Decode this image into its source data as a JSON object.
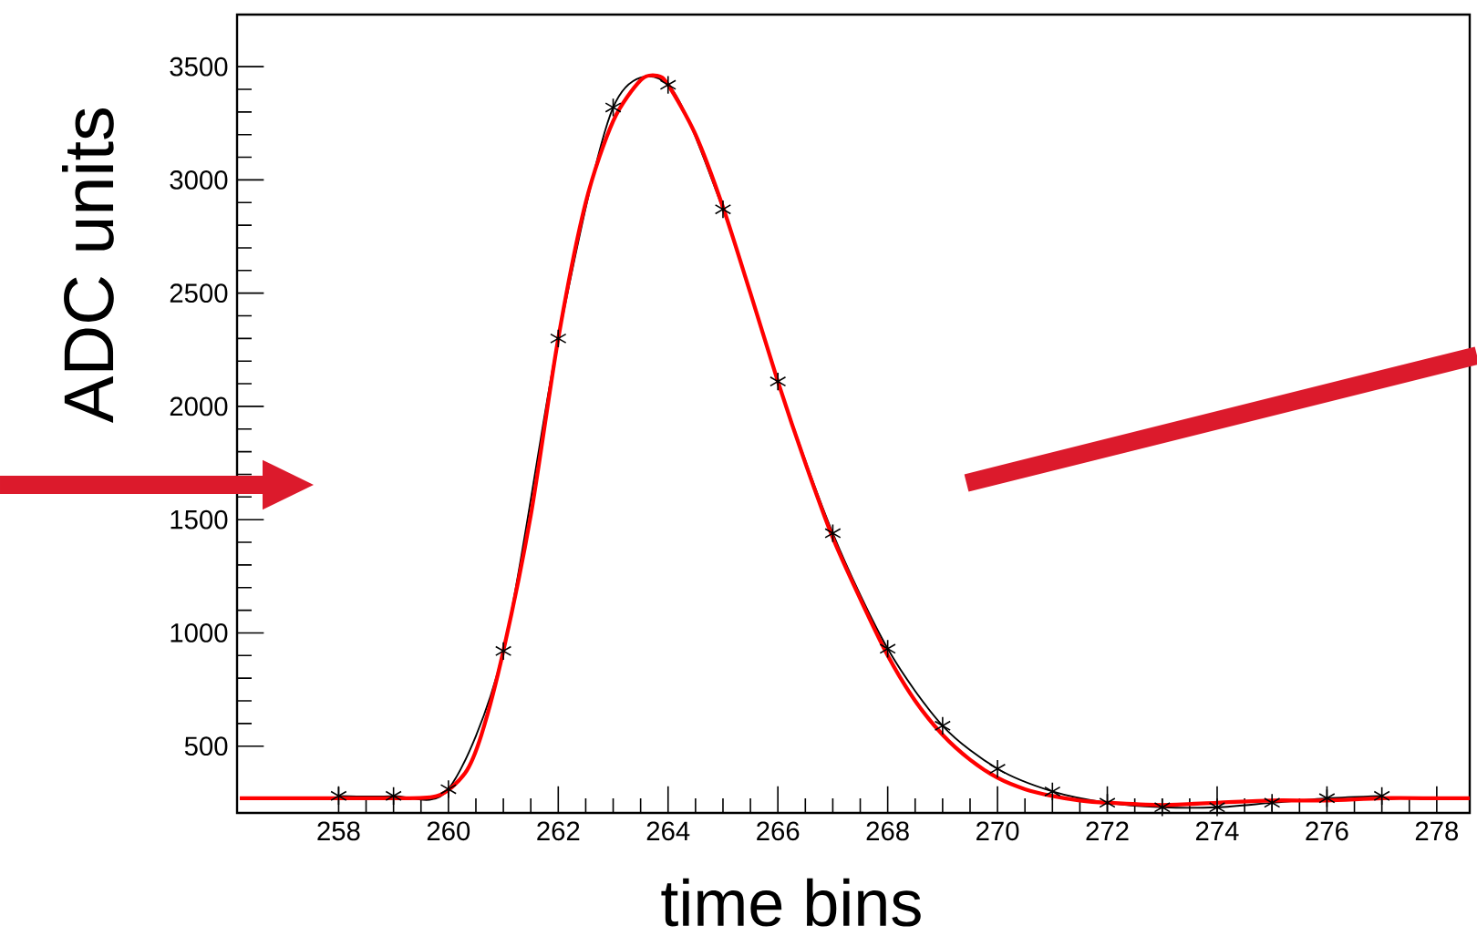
{
  "chart_data": {
    "type": "line",
    "xlabel": "time bins",
    "ylabel": "ADC units",
    "xlim": [
      256.15,
      278.6
    ],
    "ylim": [
      205,
      3730
    ],
    "xticks": [
      258,
      260,
      262,
      264,
      266,
      268,
      270,
      272,
      274,
      276,
      278
    ],
    "yticks": [
      500,
      1000,
      1500,
      2000,
      2500,
      3000,
      3500
    ],
    "grid": false,
    "series": [
      {
        "color": "#000000",
        "marker": "cross",
        "x": [
          258,
          259,
          260,
          261,
          262,
          263,
          264,
          265,
          266,
          267,
          268,
          269,
          270,
          271,
          272,
          273,
          274,
          275,
          276,
          277
        ],
        "values": [
          280,
          280,
          310,
          920,
          2300,
          3320,
          3420,
          2870,
          2110,
          1440,
          930,
          590,
          400,
          300,
          250,
          230,
          230,
          250,
          270,
          280
        ]
      },
      {
        "color": "#ff0000",
        "marker": "none",
        "x": [
          256.2,
          257,
          258,
          259,
          259.8,
          260.3,
          260.6,
          261,
          261.5,
          262,
          262.5,
          263,
          263.5,
          263.8,
          264,
          264.5,
          265,
          265.5,
          266,
          266.5,
          267,
          267.5,
          268,
          268.5,
          269,
          269.5,
          270,
          270.5,
          271,
          271.5,
          272,
          273,
          274,
          275,
          276,
          277,
          278,
          278.6
        ],
        "values": [
          270,
          270,
          270,
          270,
          280,
          380,
          550,
          920,
          1520,
          2300,
          2900,
          3260,
          3440,
          3460,
          3420,
          3200,
          2880,
          2500,
          2110,
          1750,
          1420,
          1150,
          900,
          700,
          550,
          440,
          360,
          310,
          280,
          260,
          250,
          240,
          250,
          260,
          260,
          270,
          270,
          270
        ]
      }
    ]
  }
}
